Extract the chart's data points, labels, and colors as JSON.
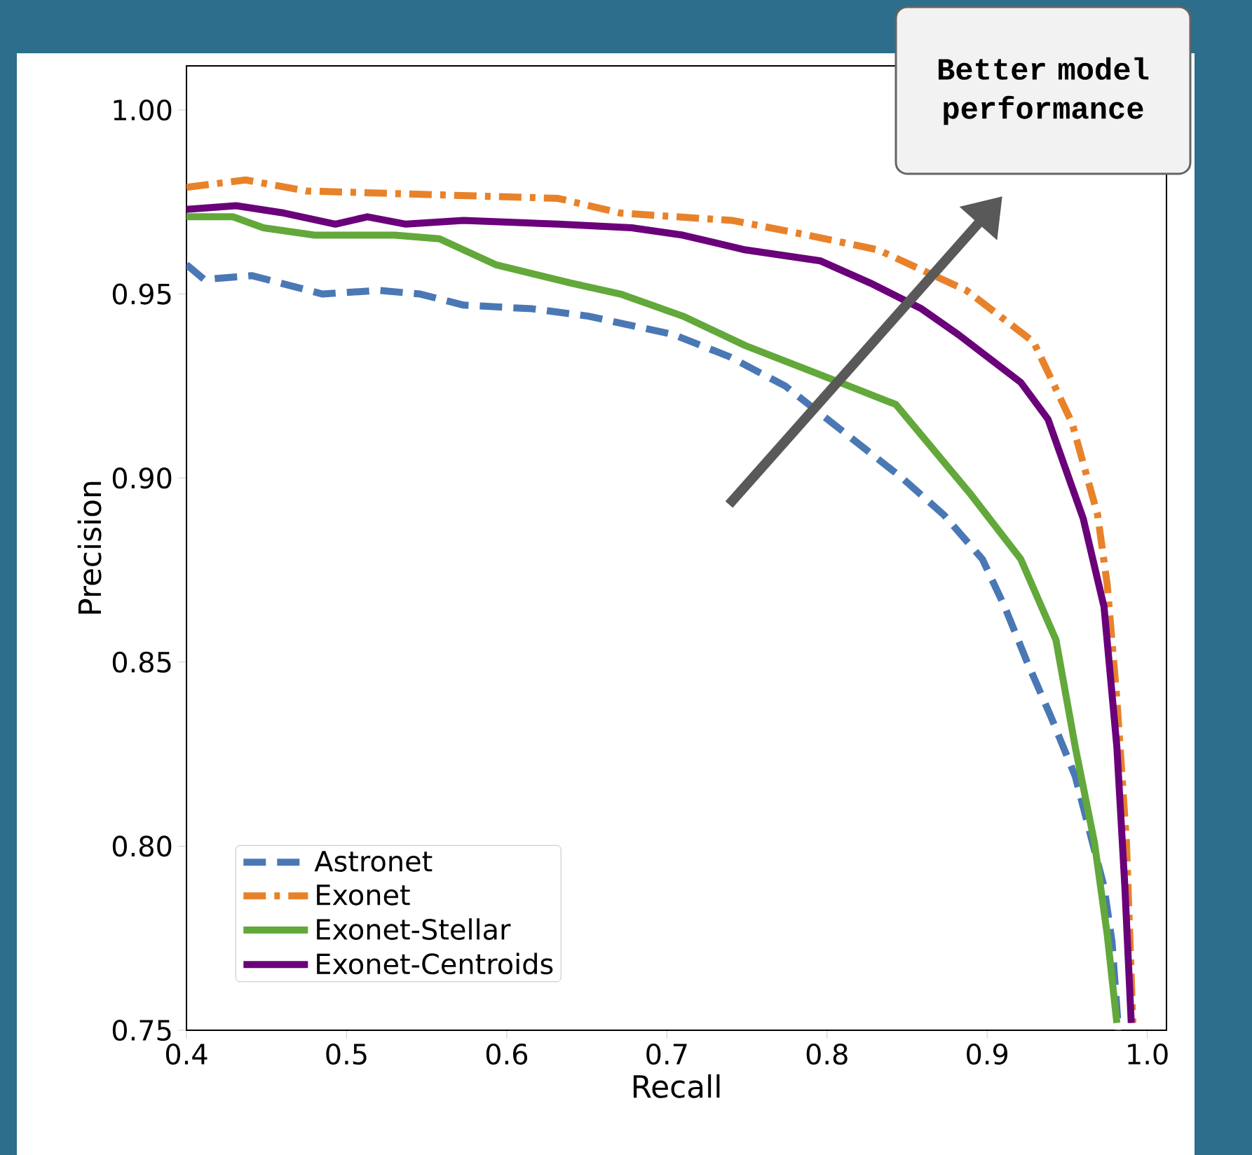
{
  "chart_data": {
    "type": "line",
    "xlabel": "Recall",
    "ylabel": "Precision",
    "xlim": [
      0.4,
      1.012
    ],
    "ylim": [
      0.75,
      1.012
    ],
    "xticks": [
      0.4,
      0.5,
      0.6,
      0.7,
      0.8,
      0.9,
      {
        "value": 1.0,
        "label": "1.0"
      }
    ],
    "yticks": [
      0.75,
      {
        "value": 0.8,
        "label": "0.80"
      },
      0.85,
      {
        "value": 0.9,
        "label": "0.90"
      },
      0.95,
      {
        "value": 1.0,
        "label": "1.00"
      }
    ],
    "legend": "bottom left",
    "grid": false,
    "annotations": [
      "Better model performance"
    ],
    "series": [
      {
        "name": "Astronet",
        "color": "#4a78b5",
        "line_style": "dashed",
        "x": [
          0.4,
          0.411,
          0.441,
          0.485,
          0.52,
          0.546,
          0.573,
          0.616,
          0.651,
          0.704,
          0.739,
          0.774,
          0.809,
          0.847,
          0.873,
          0.897,
          0.911,
          0.925,
          0.94,
          0.955,
          0.964,
          0.973,
          0.978,
          0.982
        ],
        "values": [
          0.958,
          0.954,
          0.955,
          0.95,
          0.951,
          0.95,
          0.947,
          0.946,
          0.944,
          0.939,
          0.933,
          0.925,
          0.913,
          0.9,
          0.89,
          0.878,
          0.865,
          0.85,
          0.835,
          0.819,
          0.804,
          0.789,
          0.774,
          0.75
        ]
      },
      {
        "name": "Exonet",
        "color": "#e8822a",
        "line_style": "dashdot",
        "x": [
          0.4,
          0.437,
          0.475,
          0.554,
          0.632,
          0.671,
          0.741,
          0.788,
          0.832,
          0.887,
          0.929,
          0.953,
          0.969,
          0.975,
          0.981,
          0.987,
          0.991
        ],
        "values": [
          0.979,
          0.981,
          0.978,
          0.977,
          0.976,
          0.972,
          0.97,
          0.966,
          0.962,
          0.951,
          0.937,
          0.915,
          0.89,
          0.871,
          0.84,
          0.801,
          0.752
        ]
      },
      {
        "name": "Exonet-Stellar",
        "color": "#62a83a",
        "line_style": "solid",
        "x": [
          0.4,
          0.429,
          0.448,
          0.48,
          0.53,
          0.558,
          0.593,
          0.64,
          0.671,
          0.71,
          0.749,
          0.808,
          0.843,
          0.889,
          0.921,
          0.943,
          0.955,
          0.967,
          0.975,
          0.981
        ],
        "values": [
          0.971,
          0.971,
          0.968,
          0.966,
          0.966,
          0.965,
          0.958,
          0.953,
          0.95,
          0.944,
          0.936,
          0.926,
          0.92,
          0.896,
          0.878,
          0.856,
          0.827,
          0.801,
          0.776,
          0.752
        ]
      },
      {
        "name": "Exonet-Centroids",
        "color": "#6a007a",
        "line_style": "solid",
        "x": [
          0.4,
          0.431,
          0.461,
          0.493,
          0.513,
          0.537,
          0.573,
          0.632,
          0.678,
          0.71,
          0.749,
          0.796,
          0.827,
          0.859,
          0.882,
          0.921,
          0.938,
          0.96,
          0.973,
          0.981,
          0.986,
          0.99
        ],
        "values": [
          0.973,
          0.974,
          0.972,
          0.969,
          0.971,
          0.969,
          0.97,
          0.969,
          0.968,
          0.966,
          0.962,
          0.959,
          0.953,
          0.946,
          0.939,
          0.926,
          0.916,
          0.889,
          0.865,
          0.827,
          0.789,
          0.752
        ]
      }
    ]
  }
}
